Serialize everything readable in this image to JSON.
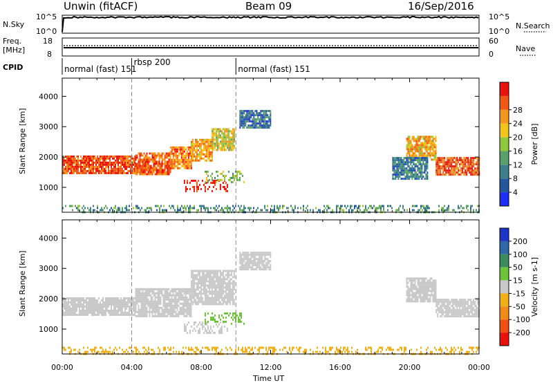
{
  "header": {
    "station": "Unwin (fitACF)",
    "beam": "Beam 09",
    "date": "16/Sep/2016"
  },
  "top_panels": {
    "nsky_label": "N.Sky",
    "nsky_ticks": [
      "10^5",
      "10^0"
    ],
    "nsearch_label": "N.Search",
    "nsearch_ticks": [
      "10^5",
      "10^0"
    ],
    "freq_label": "Freq.",
    "freq_unit": "[MHz]",
    "freq_ticks": [
      "18",
      "8"
    ],
    "nave_label": "Nave",
    "nave_ticks": [
      "60",
      "0"
    ],
    "cpid_label": "CPID",
    "modes": [
      {
        "label": "normal (fast) 151",
        "start_hour": 0,
        "end_hour": 4
      },
      {
        "label": "rbsp 200",
        "start_hour": 4,
        "end_hour": 10
      },
      {
        "label": "normal (fast) 151",
        "start_hour": 10,
        "end_hour": 24
      }
    ]
  },
  "panels": {
    "power_ylabel": "Slant Range [km]",
    "velocity_ylabel": "Slant Range [km]",
    "y_ticks": [
      "1000",
      "2000",
      "3000",
      "4000"
    ],
    "x_ticks": [
      "00:00",
      "04:00",
      "08:00",
      "12:00",
      "16:00",
      "20:00",
      "00:00"
    ],
    "xlabel": "Time UT"
  },
  "colorbars": {
    "power": {
      "title": "Power [dB]",
      "ticks": [
        "4",
        "8",
        "12",
        "16",
        "20",
        "24",
        "28"
      ],
      "colors": [
        "#1f2ff2",
        "#24589c",
        "#3d7f8c",
        "#5aa06a",
        "#8fc83c",
        "#f2c51c",
        "#f2961e",
        "#ee5a16",
        "#e8150c"
      ]
    },
    "velocity": {
      "title": "Velocity [m s-1]",
      "ticks": [
        "200",
        "100",
        "50",
        "15",
        "-15",
        "-50",
        "-100",
        "-200"
      ],
      "colors": [
        "#1c34c8",
        "#2f67a7",
        "#3c8a5e",
        "#6dc43a",
        "#c8c8c8",
        "#f0b019",
        "#f08a18",
        "#f05014",
        "#e8140c"
      ]
    }
  },
  "chart_data": [
    {
      "type": "heatmap",
      "name": "Power",
      "xlabel": "Time UT",
      "ylabel": "Slant Range [km]",
      "xlim": [
        0,
        24
      ],
      "ylim": [
        180,
        4600
      ],
      "colorscale_label": "Power [dB]",
      "colorscale_range": [
        0,
        30
      ],
      "regions": [
        {
          "t0": 0.0,
          "t1": 4.2,
          "r0": 1450,
          "r1": 2050,
          "value": 26
        },
        {
          "t0": 4.2,
          "t1": 6.2,
          "r0": 1450,
          "r1": 2150,
          "value": 25
        },
        {
          "t0": 6.2,
          "t1": 7.4,
          "r0": 1600,
          "r1": 2350,
          "value": 23
        },
        {
          "t0": 7.4,
          "t1": 8.6,
          "r0": 1850,
          "r1": 2600,
          "value": 21
        },
        {
          "t0": 8.6,
          "t1": 9.9,
          "r0": 2200,
          "r1": 2950,
          "value": 17
        },
        {
          "t0": 7.0,
          "t1": 9.5,
          "r0": 900,
          "r1": 1250,
          "value": 28
        },
        {
          "t0": 8.2,
          "t1": 10.5,
          "r0": 1200,
          "r1": 1550,
          "value": 14
        },
        {
          "t0": 10.2,
          "t1": 12.0,
          "r0": 3000,
          "r1": 3550,
          "value": 7
        },
        {
          "t0": 19.8,
          "t1": 21.5,
          "r0": 1900,
          "r1": 2700,
          "value": 20
        },
        {
          "t0": 21.5,
          "t1": 24.0,
          "r0": 1400,
          "r1": 2000,
          "value": 25
        },
        {
          "t0": 19.0,
          "t1": 21.0,
          "r0": 1300,
          "r1": 2000,
          "value": 8
        },
        {
          "t0": 0.0,
          "t1": 24.0,
          "r0": 200,
          "r1": 420,
          "value": 10
        }
      ]
    },
    {
      "type": "heatmap",
      "name": "Velocity",
      "xlabel": "Time UT",
      "ylabel": "Slant Range [km]",
      "xlim": [
        0,
        24
      ],
      "ylim": [
        180,
        4600
      ],
      "colorscale_label": "Velocity [m s-1]",
      "colorscale_range": [
        -200,
        200
      ],
      "regions": [
        {
          "t0": 0.0,
          "t1": 4.2,
          "r0": 1450,
          "r1": 2050,
          "value": 0
        },
        {
          "t0": 4.2,
          "t1": 7.4,
          "r0": 1450,
          "r1": 2350,
          "value": 0
        },
        {
          "t0": 7.4,
          "t1": 9.9,
          "r0": 1850,
          "r1": 2950,
          "value": 0
        },
        {
          "t0": 7.0,
          "t1": 9.5,
          "r0": 900,
          "r1": 1250,
          "value": 0
        },
        {
          "t0": 8.2,
          "t1": 10.5,
          "r0": 1200,
          "r1": 1550,
          "value": 35
        },
        {
          "t0": 10.2,
          "t1": 12.0,
          "r0": 3000,
          "r1": 3550,
          "value": 0
        },
        {
          "t0": 19.8,
          "t1": 21.5,
          "r0": 1900,
          "r1": 2700,
          "value": 0
        },
        {
          "t0": 21.5,
          "t1": 24.0,
          "r0": 1400,
          "r1": 2000,
          "value": 0
        },
        {
          "t0": 0.0,
          "t1": 24.0,
          "r0": 200,
          "r1": 420,
          "value": -40
        }
      ]
    }
  ]
}
